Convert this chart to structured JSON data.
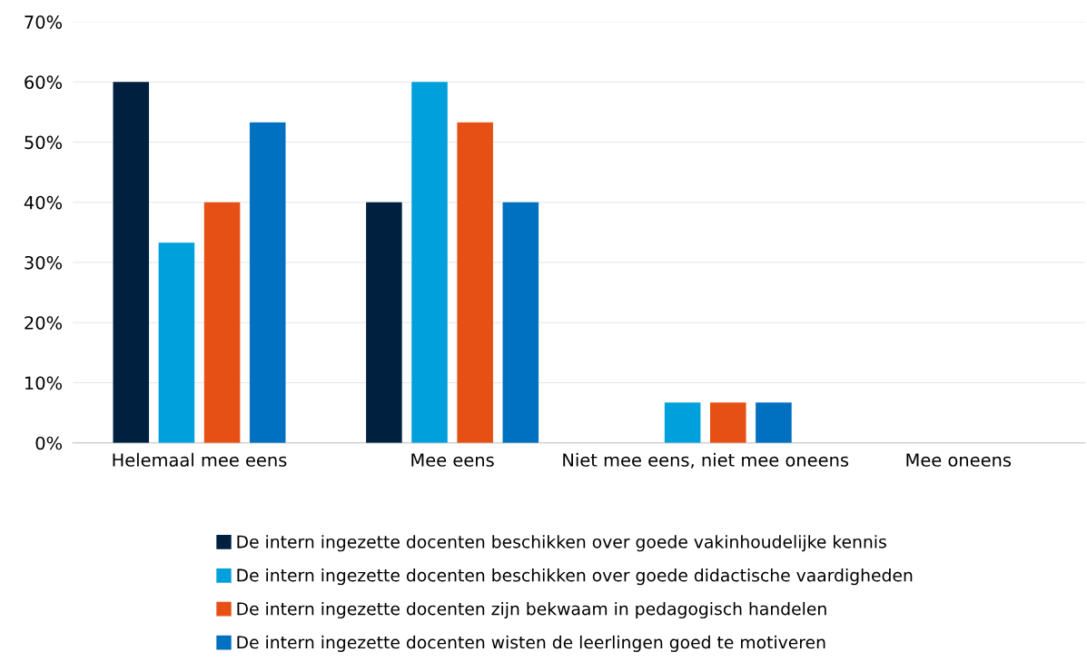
{
  "chart_data": {
    "type": "bar",
    "categories": [
      "Helemaal mee eens",
      "Mee eens",
      "Niet mee eens, niet mee oneens",
      "Mee oneens"
    ],
    "series": [
      {
        "name": "De intern ingezette docenten beschikken over goede vakinhoudelijke kennis",
        "color": "#002040",
        "values": [
          60,
          40,
          0,
          0
        ]
      },
      {
        "name": "De intern ingezette docenten beschikken over goede didactische vaardigheden",
        "color": "#00a0dc",
        "values": [
          33.3,
          60,
          6.7,
          0
        ]
      },
      {
        "name": "De intern ingezette docenten zijn bekwaam in pedagogisch handelen",
        "color": "#e65014",
        "values": [
          40,
          53.3,
          6.7,
          0
        ]
      },
      {
        "name": "De intern ingezette docenten wisten de leerlingen goed te motiveren",
        "color": "#0070c0",
        "values": [
          53.3,
          40,
          6.7,
          0
        ]
      }
    ],
    "ylim": [
      0,
      70
    ],
    "yticks": [
      {
        "value": 0,
        "label": "0%"
      },
      {
        "value": 10,
        "label": "10%"
      },
      {
        "value": 20,
        "label": "20%"
      },
      {
        "value": 30,
        "label": "30%"
      },
      {
        "value": 40,
        "label": "40%"
      },
      {
        "value": 50,
        "label": "50%"
      },
      {
        "value": 60,
        "label": "60%"
      },
      {
        "value": 70,
        "label": "70%"
      }
    ],
    "grid": "y",
    "legend": "bottom"
  }
}
